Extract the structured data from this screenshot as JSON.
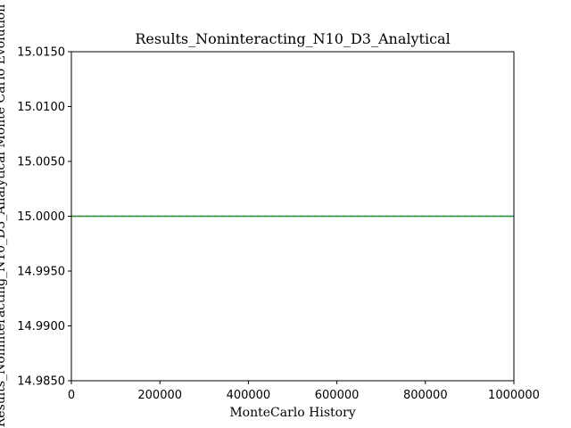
{
  "chart_data": {
    "type": "line",
    "title": "Results_Noninteracting_N10_D3_Analytical",
    "xlabel": "MonteCarlo History",
    "ylabel": "Results_Noninteracting_N10_D3_Analytical Monte Carlo Evolution",
    "xlim": [
      0,
      1000000
    ],
    "ylim": [
      14.985,
      15.015
    ],
    "x_ticks": [
      "0",
      "200000",
      "400000",
      "600000",
      "800000",
      "1000000"
    ],
    "y_ticks": [
      "14.9850",
      "14.9900",
      "14.9950",
      "15.0000",
      "15.0050",
      "15.0100",
      "15.0150"
    ],
    "grid": false,
    "series": [
      {
        "x": [
          0,
          1000000
        ],
        "values": [
          15.0,
          15.0
        ],
        "color": "#1f77b4",
        "style": "solid"
      },
      {
        "x": [
          0,
          1000000
        ],
        "values": [
          15.0,
          15.0
        ],
        "color": "#ff7f0e",
        "style": "dashed"
      },
      {
        "x": [
          0,
          1000000
        ],
        "values": [
          15.0,
          15.0
        ],
        "color": "#2ca02c",
        "style": "dashed"
      }
    ]
  }
}
